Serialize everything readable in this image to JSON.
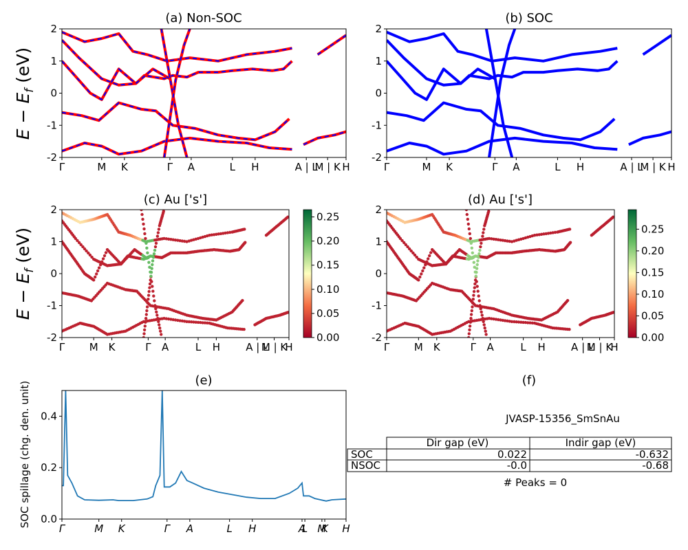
{
  "chart_data": [
    {
      "id": "a",
      "type": "line",
      "title": "(a) Non-SOC",
      "ylabel": "E − E_f (eV)",
      "ylim": [
        -2,
        2
      ],
      "yticks": [
        2,
        1,
        0,
        -1,
        -2
      ],
      "xticks": [
        "Γ",
        "M",
        "K",
        "Γ",
        "A",
        "L",
        "H",
        "A | L",
        "M | K",
        "H"
      ],
      "series": [
        {
          "color": "#ff0000",
          "dashed_overlay_color": "#0000ff",
          "bands": [
            [
              [
                0,
                1.65
              ],
              [
                0.06,
                1.1
              ],
              [
                0.14,
                0.45
              ],
              [
                0.2,
                0.25
              ],
              [
                0.26,
                0.3
              ],
              [
                0.29,
                0.55
              ],
              [
                0.36,
                0.45
              ],
              [
                0.39,
                0.55
              ],
              [
                0.44,
                0.5
              ],
              [
                0.48,
                0.65
              ],
              [
                0.55,
                0.65
              ],
              [
                0.6,
                0.7
              ],
              [
                0.67,
                0.75
              ],
              [
                0.74,
                0.7
              ],
              [
                0.78,
                0.75
              ],
              [
                0.81,
                1.0
              ]
            ],
            [
              [
                0,
                1.0
              ],
              [
                0.05,
                0.5
              ],
              [
                0.1,
                0.0
              ],
              [
                0.14,
                -0.2
              ],
              [
                0.2,
                0.75
              ],
              [
                0.26,
                0.3
              ],
              [
                0.32,
                0.75
              ],
              [
                0.38,
                0.45
              ]
            ],
            [
              [
                0,
                -0.6
              ],
              [
                0.07,
                -0.7
              ],
              [
                0.13,
                -0.85
              ],
              [
                0.2,
                -0.3
              ],
              [
                0.28,
                -0.5
              ],
              [
                0.33,
                -0.55
              ],
              [
                0.39,
                -1.0
              ],
              [
                0.47,
                -1.1
              ],
              [
                0.55,
                -1.3
              ],
              [
                0.62,
                -1.4
              ],
              [
                0.68,
                -1.45
              ],
              [
                0.75,
                -1.2
              ],
              [
                0.8,
                -0.8
              ]
            ],
            [
              [
                0,
                -1.8
              ],
              [
                0.08,
                -1.55
              ],
              [
                0.14,
                -1.65
              ],
              [
                0.2,
                -1.9
              ],
              [
                0.28,
                -1.8
              ],
              [
                0.36,
                -1.5
              ],
              [
                0.45,
                -1.4
              ],
              [
                0.55,
                -1.5
              ],
              [
                0.65,
                -1.55
              ],
              [
                0.73,
                -1.7
              ],
              [
                0.81,
                -1.75
              ]
            ],
            [
              [
                0.85,
                -1.6
              ],
              [
                0.9,
                -1.4
              ],
              [
                0.96,
                -1.3
              ],
              [
                1.0,
                -1.2
              ]
            ],
            [
              [
                0.9,
                1.2
              ],
              [
                0.95,
                1.5
              ],
              [
                1.0,
                1.8
              ]
            ],
            [
              [
                0,
                1.9
              ],
              [
                0.08,
                1.6
              ],
              [
                0.14,
                1.7
              ],
              [
                0.2,
                1.85
              ],
              [
                0.25,
                1.3
              ],
              [
                0.3,
                1.2
              ],
              [
                0.37,
                1.0
              ],
              [
                0.45,
                1.1
              ],
              [
                0.55,
                1.0
              ],
              [
                0.65,
                1.2
              ],
              [
                0.75,
                1.3
              ],
              [
                0.81,
                1.4
              ]
            ],
            [
              [
                0.35,
                2.0
              ],
              [
                0.38,
                0.5
              ],
              [
                0.41,
                -1.0
              ],
              [
                0.44,
                -2.0
              ]
            ],
            [
              [
                0.36,
                -2.0
              ],
              [
                0.38,
                -0.8
              ],
              [
                0.4,
                0.4
              ],
              [
                0.43,
                1.5
              ],
              [
                0.45,
                2.0
              ]
            ]
          ]
        }
      ]
    },
    {
      "id": "b",
      "type": "line",
      "title": "(b) SOC",
      "ylim": [
        -2,
        2
      ],
      "yticks": [
        2,
        1,
        0,
        -1,
        -2
      ],
      "xticks": [
        "Γ",
        "M",
        "K",
        "Γ",
        "A",
        "L",
        "H",
        "A | L",
        "M | K",
        "H"
      ],
      "series": [
        {
          "color": "#0000ff",
          "bands": [
            [
              [
                0,
                1.65
              ],
              [
                0.06,
                1.1
              ],
              [
                0.14,
                0.45
              ],
              [
                0.2,
                0.25
              ],
              [
                0.26,
                0.3
              ],
              [
                0.29,
                0.55
              ],
              [
                0.36,
                0.45
              ],
              [
                0.39,
                0.55
              ],
              [
                0.44,
                0.5
              ],
              [
                0.48,
                0.65
              ],
              [
                0.55,
                0.65
              ],
              [
                0.6,
                0.7
              ],
              [
                0.67,
                0.75
              ],
              [
                0.74,
                0.7
              ],
              [
                0.78,
                0.75
              ],
              [
                0.81,
                1.0
              ]
            ],
            [
              [
                0,
                1.0
              ],
              [
                0.05,
                0.5
              ],
              [
                0.1,
                0.0
              ],
              [
                0.14,
                -0.2
              ],
              [
                0.2,
                0.75
              ],
              [
                0.26,
                0.3
              ],
              [
                0.32,
                0.75
              ],
              [
                0.38,
                0.45
              ]
            ],
            [
              [
                0,
                -0.6
              ],
              [
                0.07,
                -0.7
              ],
              [
                0.13,
                -0.85
              ],
              [
                0.2,
                -0.3
              ],
              [
                0.28,
                -0.5
              ],
              [
                0.33,
                -0.55
              ],
              [
                0.39,
                -1.0
              ],
              [
                0.47,
                -1.1
              ],
              [
                0.55,
                -1.3
              ],
              [
                0.62,
                -1.4
              ],
              [
                0.68,
                -1.45
              ],
              [
                0.75,
                -1.2
              ],
              [
                0.8,
                -0.8
              ]
            ],
            [
              [
                0,
                -1.8
              ],
              [
                0.08,
                -1.55
              ],
              [
                0.14,
                -1.65
              ],
              [
                0.2,
                -1.9
              ],
              [
                0.28,
                -1.8
              ],
              [
                0.36,
                -1.5
              ],
              [
                0.45,
                -1.4
              ],
              [
                0.55,
                -1.5
              ],
              [
                0.65,
                -1.55
              ],
              [
                0.73,
                -1.7
              ],
              [
                0.81,
                -1.75
              ]
            ],
            [
              [
                0.85,
                -1.6
              ],
              [
                0.9,
                -1.4
              ],
              [
                0.96,
                -1.3
              ],
              [
                1.0,
                -1.2
              ]
            ],
            [
              [
                0.9,
                1.2
              ],
              [
                0.95,
                1.5
              ],
              [
                1.0,
                1.8
              ]
            ],
            [
              [
                0,
                1.9
              ],
              [
                0.08,
                1.6
              ],
              [
                0.14,
                1.7
              ],
              [
                0.2,
                1.85
              ],
              [
                0.25,
                1.3
              ],
              [
                0.3,
                1.2
              ],
              [
                0.37,
                1.0
              ],
              [
                0.45,
                1.1
              ],
              [
                0.55,
                1.0
              ],
              [
                0.65,
                1.2
              ],
              [
                0.75,
                1.3
              ],
              [
                0.81,
                1.4
              ]
            ],
            [
              [
                0.35,
                2.0
              ],
              [
                0.38,
                0.5
              ],
              [
                0.41,
                -1.0
              ],
              [
                0.44,
                -2.0
              ]
            ],
            [
              [
                0.36,
                -2.0
              ],
              [
                0.38,
                -0.8
              ],
              [
                0.4,
                0.4
              ],
              [
                0.43,
                1.5
              ],
              [
                0.45,
                2.0
              ]
            ]
          ]
        }
      ]
    },
    {
      "id": "c",
      "type": "scatter",
      "title": "(c)  Au ['s']",
      "ylabel": "E − E_f (eV)",
      "ylim": [
        -2,
        2
      ],
      "yticks": [
        2,
        1,
        0,
        -1,
        -2
      ],
      "xticks": [
        "Γ",
        "M",
        "K",
        "Γ",
        "A",
        "L",
        "H",
        "A | L",
        "M | K",
        "H"
      ],
      "colormap": "RdYlGn",
      "colorbar": {
        "ticks": [
          "0.25",
          "0.20",
          "0.15",
          "0.10",
          "0.05",
          "0.00"
        ],
        "min": 0.0,
        "max": 0.265
      }
    },
    {
      "id": "d",
      "type": "scatter",
      "title": "(d) Au ['s']",
      "ylim": [
        -2,
        2
      ],
      "yticks": [
        2,
        1,
        0,
        -1,
        -2
      ],
      "xticks": [
        "Γ",
        "M",
        "K",
        "Γ",
        "A",
        "L",
        "H",
        "A | L",
        "M | K",
        "H"
      ],
      "colormap": "RdYlGn",
      "colorbar": {
        "ticks": [
          "0.25",
          "0.20",
          "0.15",
          "0.10",
          "0.05",
          "0.00"
        ],
        "min": 0.0,
        "max": 0.295
      }
    },
    {
      "id": "e",
      "type": "line",
      "title": "(e)",
      "ylabel": "SOC spillage (chg. den. unit)",
      "ylim": [
        0,
        0.5
      ],
      "yticks": [
        "0.0",
        "0.2",
        "0.4"
      ],
      "xticks": [
        "Γ",
        "M",
        "K",
        "Γ",
        "A",
        "L",
        "H",
        "A",
        "L",
        "M",
        "K",
        "H"
      ],
      "series": [
        {
          "color": "#1f77b4",
          "points": [
            [
              0,
              0.13
            ],
            [
              0.005,
              0.13
            ],
            [
              0.013,
              0.5
            ],
            [
              0.02,
              0.17
            ],
            [
              0.035,
              0.14
            ],
            [
              0.055,
              0.09
            ],
            [
              0.08,
              0.075
            ],
            [
              0.13,
              0.073
            ],
            [
              0.18,
              0.075
            ],
            [
              0.2,
              0.072
            ],
            [
              0.25,
              0.072
            ],
            [
              0.3,
              0.078
            ],
            [
              0.32,
              0.087
            ],
            [
              0.33,
              0.13
            ],
            [
              0.345,
              0.17
            ],
            [
              0.353,
              0.5
            ],
            [
              0.36,
              0.125
            ],
            [
              0.38,
              0.125
            ],
            [
              0.4,
              0.14
            ],
            [
              0.42,
              0.185
            ],
            [
              0.44,
              0.15
            ],
            [
              0.46,
              0.14
            ],
            [
              0.5,
              0.12
            ],
            [
              0.55,
              0.105
            ],
            [
              0.6,
              0.095
            ],
            [
              0.65,
              0.085
            ],
            [
              0.7,
              0.08
            ],
            [
              0.75,
              0.08
            ],
            [
              0.8,
              0.1
            ],
            [
              0.83,
              0.12
            ],
            [
              0.845,
              0.14
            ],
            [
              0.85,
              0.09
            ],
            [
              0.87,
              0.09
            ],
            [
              0.89,
              0.08
            ],
            [
              0.93,
              0.07
            ],
            [
              0.95,
              0.075
            ],
            [
              1.0,
              0.078
            ]
          ]
        }
      ]
    }
  ],
  "panel_f": {
    "title": "(f)",
    "material": "JVASP-15356_SmSnAu",
    "table": {
      "headers": [
        "Dir gap (eV)",
        "Indir gap (eV)"
      ],
      "rows": [
        {
          "label": "SOC",
          "dir": "0.022",
          "indir": "-0.632"
        },
        {
          "label": "NSOC",
          "dir": "-0.0",
          "indir": "-0.68"
        }
      ]
    },
    "peaks": "# Peaks = 0"
  }
}
